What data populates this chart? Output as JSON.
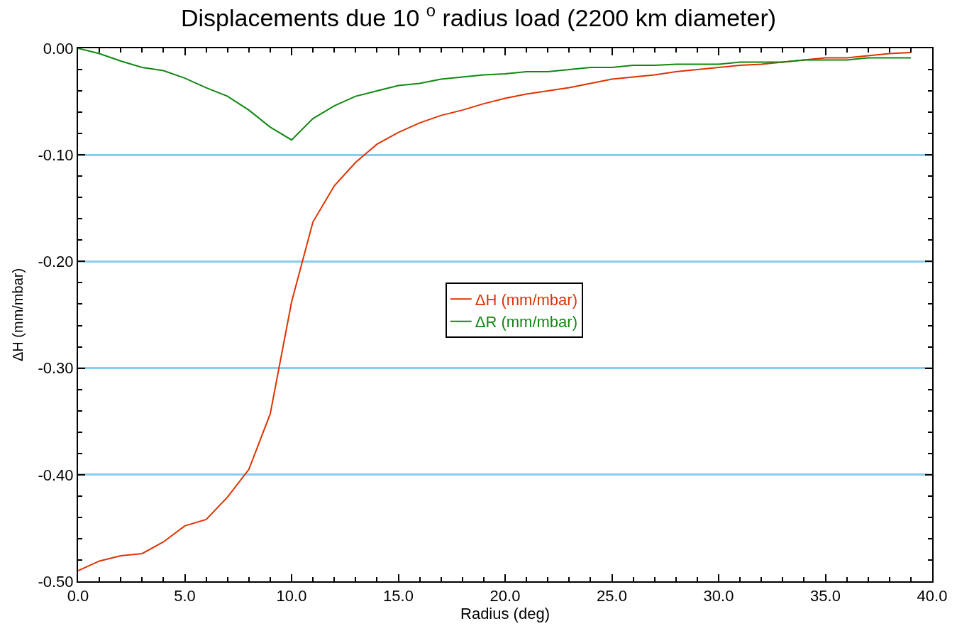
{
  "chart_data": {
    "type": "line",
    "title": "Displacements due 10 $^{o}$ radius load (2200 km diameter)",
    "xlabel": "Radius (deg)",
    "ylabel": "ΔH (mm/mbar)",
    "x": [
      0,
      1,
      2,
      3,
      4,
      5,
      6,
      7,
      8,
      9,
      10,
      11,
      12,
      13,
      14,
      15,
      16,
      17,
      18,
      19,
      20,
      21,
      22,
      23,
      24,
      25,
      26,
      27,
      28,
      29,
      30,
      31,
      32,
      33,
      34,
      35,
      36,
      37,
      38,
      39
    ],
    "series": [
      {
        "name": "ΔH (mm/mbar)",
        "color": "#dd3300",
        "values": [
          -0.49,
          -0.481,
          -0.476,
          -0.474,
          -0.463,
          -0.448,
          -0.442,
          -0.421,
          -0.395,
          -0.343,
          -0.238,
          -0.163,
          -0.129,
          -0.107,
          -0.09,
          -0.079,
          -0.07,
          -0.063,
          -0.058,
          -0.052,
          -0.047,
          -0.043,
          -0.04,
          -0.037,
          -0.033,
          -0.029,
          -0.027,
          -0.025,
          -0.022,
          -0.02,
          -0.018,
          -0.016,
          -0.015,
          -0.013,
          -0.011,
          -0.009,
          -0.009,
          -0.007,
          -0.005,
          -0.004
        ]
      },
      {
        "name": "ΔR (mm/mbar)",
        "color": "#118811",
        "values": [
          0.0,
          -0.005,
          -0.012,
          -0.018,
          -0.021,
          -0.028,
          -0.037,
          -0.045,
          -0.058,
          -0.074,
          -0.086,
          -0.066,
          -0.054,
          -0.045,
          -0.04,
          -0.035,
          -0.033,
          -0.029,
          -0.027,
          -0.025,
          -0.024,
          -0.022,
          -0.022,
          -0.02,
          -0.018,
          -0.018,
          -0.016,
          -0.016,
          -0.015,
          -0.015,
          -0.015,
          -0.013,
          -0.013,
          -0.013,
          -0.011,
          -0.011,
          -0.011,
          -0.009,
          -0.009,
          -0.009
        ]
      }
    ],
    "xlim": [
      0,
      40
    ],
    "xticks": [
      {
        "value": 0,
        "label": "0.0"
      },
      {
        "value": 5,
        "label": "5.0"
      },
      {
        "value": 10,
        "label": "10.0"
      },
      {
        "value": 15,
        "label": "15.0"
      },
      {
        "value": 20,
        "label": "20.0"
      },
      {
        "value": 25,
        "label": "25.0"
      },
      {
        "value": 30,
        "label": "30.0"
      },
      {
        "value": 35,
        "label": "35.0"
      },
      {
        "value": 40,
        "label": "40.0"
      }
    ],
    "ylim": [
      -0.5,
      0
    ],
    "yticks": [
      {
        "value": -0.5,
        "label": "-0.50"
      },
      {
        "value": -0.4,
        "label": "-0.40"
      },
      {
        "value": -0.3,
        "label": "-0.30"
      },
      {
        "value": -0.2,
        "label": "-0.20"
      },
      {
        "value": -0.1,
        "label": "-0.10"
      },
      {
        "value": 0,
        "label": "0.00"
      }
    ],
    "grid": "y",
    "legend": "center",
    "marker": "none",
    "line_style": "solid"
  }
}
